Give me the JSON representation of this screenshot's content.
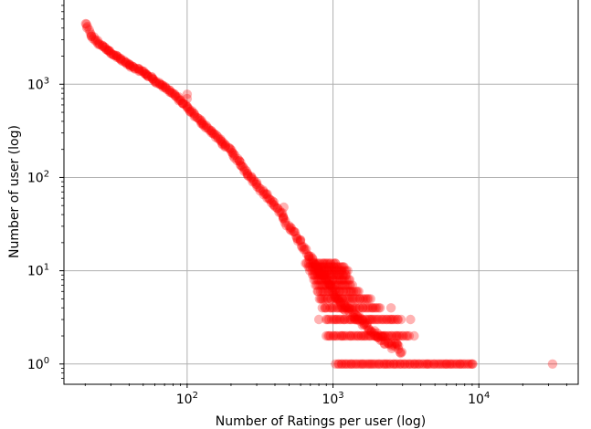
{
  "chart_data": {
    "type": "scatter",
    "title": "",
    "xlabel": "Number of Ratings per user (log)",
    "ylabel": "Number of user (log)",
    "xscale": "log",
    "yscale": "log",
    "xlim": [
      14.3,
      48000
    ],
    "ylim": [
      0.62,
      8000
    ],
    "grid": true,
    "marker_color": "#ff0000",
    "marker_alpha": 0.3,
    "xticks": [
      {
        "value": 100,
        "base": "10",
        "exp": "2"
      },
      {
        "value": 1000,
        "base": "10",
        "exp": "3"
      },
      {
        "value": 10000,
        "base": "10",
        "exp": "4"
      }
    ],
    "yticks": [
      {
        "value": 1,
        "base": "10",
        "exp": "0"
      },
      {
        "value": 10,
        "base": "10",
        "exp": "1"
      },
      {
        "value": 100,
        "base": "10",
        "exp": "2"
      },
      {
        "value": 1000,
        "base": "10",
        "exp": "3"
      }
    ],
    "curve_points": [
      {
        "x": 20,
        "y": 4500
      },
      {
        "x": 22,
        "y": 3300
      },
      {
        "x": 25,
        "y": 2700
      },
      {
        "x": 30,
        "y": 2200
      },
      {
        "x": 40,
        "y": 1600
      },
      {
        "x": 50,
        "y": 1350
      },
      {
        "x": 60,
        "y": 1100
      },
      {
        "x": 80,
        "y": 800
      },
      {
        "x": 100,
        "y": 560
      },
      {
        "x": 120,
        "y": 420
      },
      {
        "x": 150,
        "y": 300
      },
      {
        "x": 200,
        "y": 190
      },
      {
        "x": 250,
        "y": 120
      },
      {
        "x": 300,
        "y": 85
      },
      {
        "x": 400,
        "y": 50
      },
      {
        "x": 500,
        "y": 30
      },
      {
        "x": 600,
        "y": 20
      },
      {
        "x": 700,
        "y": 14
      },
      {
        "x": 800,
        "y": 10
      },
      {
        "x": 900,
        "y": 8
      },
      {
        "x": 1000,
        "y": 6
      },
      {
        "x": 1200,
        "y": 4
      },
      {
        "x": 1500,
        "y": 3
      },
      {
        "x": 2000,
        "y": 2
      },
      {
        "x": 3000,
        "y": 1.4
      }
    ],
    "outliers": [
      {
        "x": 100,
        "y": 780
      },
      {
        "x": 100,
        "y": 700
      },
      {
        "x": 180,
        "y": 230
      },
      {
        "x": 460,
        "y": 48
      },
      {
        "x": 800,
        "y": 3
      },
      {
        "x": 2500,
        "y": 4
      },
      {
        "x": 3400,
        "y": 3
      },
      {
        "x": 3600,
        "y": 2
      },
      {
        "x": 9000,
        "y": 1
      },
      {
        "x": 32000,
        "y": 1
      }
    ],
    "bands": [
      {
        "y": 1,
        "x_from": 1050,
        "x_to": 9000
      },
      {
        "y": 2,
        "x_from": 900,
        "x_to": 3300
      },
      {
        "y": 3,
        "x_from": 900,
        "x_to": 2900
      },
      {
        "y": 4,
        "x_from": 850,
        "x_to": 2100
      },
      {
        "y": 5,
        "x_from": 800,
        "x_to": 1800
      },
      {
        "y": 6,
        "x_from": 780,
        "x_to": 1500
      },
      {
        "y": 7,
        "x_from": 760,
        "x_to": 1350
      },
      {
        "y": 8,
        "x_from": 740,
        "x_to": 1300
      },
      {
        "y": 9,
        "x_from": 720,
        "x_to": 1250
      },
      {
        "y": 10,
        "x_from": 700,
        "x_to": 1250
      },
      {
        "y": 11,
        "x_from": 680,
        "x_to": 1200
      },
      {
        "y": 12,
        "x_from": 650,
        "x_to": 1050
      }
    ]
  }
}
